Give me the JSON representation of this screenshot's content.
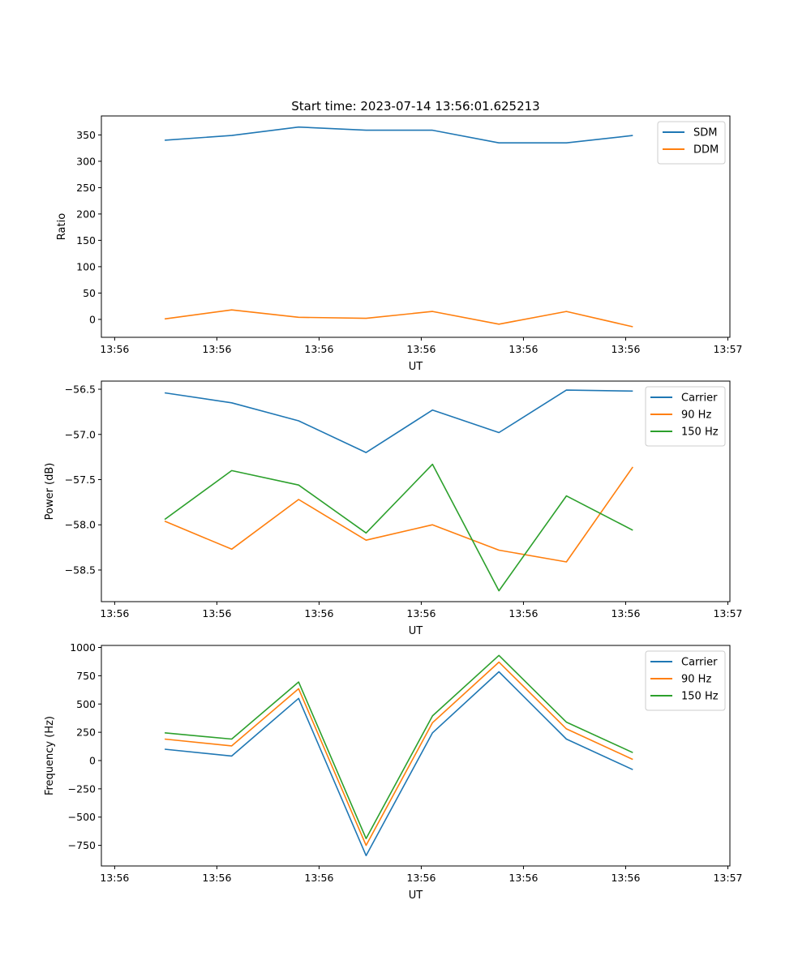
{
  "chart_data": [
    {
      "type": "line",
      "title": "Start time: 2023-07-14 13:56:01.625213",
      "xlabel": "UT",
      "ylabel": "Ratio",
      "x_unit": "seconds after 13:56:00",
      "x": [
        4.9,
        11.45,
        18.0,
        24.6,
        31.1,
        37.6,
        44.2,
        50.7
      ],
      "xlim": [
        -1.3,
        60.2
      ],
      "xticks": [
        0,
        10,
        20,
        30,
        40,
        50,
        60
      ],
      "xtick_labels": [
        "13:56",
        "13:56",
        "13:56",
        "13:56",
        "13:56",
        "13:56",
        "13:57"
      ],
      "ylim": [
        -34,
        386
      ],
      "yticks": [
        0,
        50,
        100,
        150,
        200,
        250,
        300,
        350
      ],
      "ytick_labels": [
        "0",
        "50",
        "100",
        "150",
        "200",
        "250",
        "300",
        "350"
      ],
      "legend": "top-right",
      "grid": false,
      "series": [
        {
          "name": "SDM",
          "color": "#1f77b4",
          "values": [
            340,
            349,
            365,
            359,
            359,
            335,
            335,
            349
          ]
        },
        {
          "name": "DDM",
          "color": "#ff7f0e",
          "values": [
            1,
            18,
            4,
            2,
            15,
            -9,
            15,
            -14
          ]
        }
      ]
    },
    {
      "type": "line",
      "title": "",
      "xlabel": "UT",
      "ylabel": "Power (dB)",
      "x_unit": "seconds after 13:56:00",
      "x": [
        4.9,
        11.45,
        18.0,
        24.6,
        31.1,
        37.6,
        44.2,
        50.7
      ],
      "xlim": [
        -1.3,
        60.2
      ],
      "xticks": [
        0,
        10,
        20,
        30,
        40,
        50,
        60
      ],
      "xtick_labels": [
        "13:56",
        "13:56",
        "13:56",
        "13:56",
        "13:56",
        "13:56",
        "13:57"
      ],
      "ylim": [
        -58.85,
        -56.41
      ],
      "yticks": [
        -58.5,
        -58.0,
        -57.5,
        -57.0,
        -56.5
      ],
      "ytick_labels": [
        "−58.5",
        "−58.0",
        "−57.5",
        "−57.0",
        "−56.5"
      ],
      "legend": "top-right",
      "grid": false,
      "series": [
        {
          "name": "Carrier",
          "color": "#1f77b4",
          "values": [
            -56.54,
            -56.65,
            -56.85,
            -57.2,
            -56.73,
            -56.98,
            -56.51,
            -56.52
          ]
        },
        {
          "name": "90 Hz",
          "color": "#ff7f0e",
          "values": [
            -57.96,
            -58.27,
            -57.72,
            -58.17,
            -58.0,
            -58.28,
            -58.41,
            -57.36
          ]
        },
        {
          "name": "150 Hz",
          "color": "#2ca02c",
          "values": [
            -57.94,
            -57.4,
            -57.56,
            -58.09,
            -57.33,
            -58.73,
            -57.68,
            -58.06
          ]
        }
      ]
    },
    {
      "type": "line",
      "title": "",
      "xlabel": "UT",
      "ylabel": "Frequency (Hz)",
      "x_unit": "seconds after 13:56:00",
      "x": [
        4.9,
        11.45,
        18.0,
        24.6,
        31.1,
        37.6,
        44.2,
        50.7
      ],
      "xlim": [
        -1.3,
        60.2
      ],
      "xticks": [
        0,
        10,
        20,
        30,
        40,
        50,
        60
      ],
      "xtick_labels": [
        "13:56",
        "13:56",
        "13:56",
        "13:56",
        "13:56",
        "13:56",
        "13:57"
      ],
      "ylim": [
        -932,
        1018
      ],
      "yticks": [
        -750,
        -500,
        -250,
        0,
        250,
        500,
        750,
        1000
      ],
      "ytick_labels": [
        "−750",
        "−500",
        "−250",
        "0",
        "250",
        "500",
        "750",
        "1000"
      ],
      "legend": "top-right",
      "grid": false,
      "series": [
        {
          "name": "Carrier",
          "color": "#1f77b4",
          "values": [
            100,
            40,
            550,
            -840,
            245,
            785,
            190,
            -80
          ]
        },
        {
          "name": "90 Hz",
          "color": "#ff7f0e",
          "values": [
            190,
            130,
            635,
            -750,
            335,
            870,
            280,
            10
          ]
        },
        {
          "name": "150 Hz",
          "color": "#2ca02c",
          "values": [
            245,
            190,
            695,
            -690,
            395,
            930,
            340,
            70
          ]
        }
      ]
    }
  ]
}
